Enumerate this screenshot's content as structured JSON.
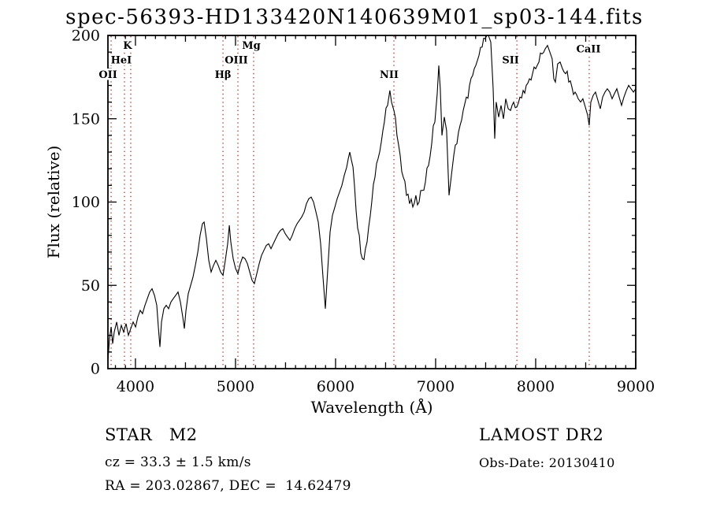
{
  "title": "spec-56393-HD133420N140639M01_sp03-144.fits",
  "annotations": {
    "class_label": "STAR   M2",
    "cz": "cz = 33.3 ± 1.5 km/s",
    "radec": "RA = 203.02867, DEC =  14.62479",
    "survey": "LAMOST DR2",
    "obs_date": "Obs-Date: 20130410"
  },
  "colors": {
    "background": "#ffffff",
    "axis": "#000000",
    "spectrum": "#000000",
    "marker_line": "#a83c32",
    "text": "#000000"
  },
  "chart_data": {
    "type": "line",
    "title": "spec-56393-HD133420N140639M01_sp03-144.fits",
    "xlabel": "Wavelength (Å)",
    "ylabel": "Flux (relative)",
    "xlim": [
      3725,
      9000
    ],
    "ylim": [
      0,
      200
    ],
    "x_major_ticks": [
      4000,
      5000,
      6000,
      7000,
      8000,
      9000
    ],
    "x_minor_step": 100,
    "x_mid_step": 500,
    "y_major_ticks": [
      0,
      50,
      100,
      150,
      200
    ],
    "y_minor_step": 10,
    "grid": false,
    "line_markers": [
      {
        "label": "OII",
        "wavelength": 3757,
        "label_dx": -4,
        "tier": 2
      },
      {
        "label": "HeI",
        "wavelength": 3890,
        "label_dx": -4,
        "tier": 1
      },
      {
        "label": "K",
        "wavelength": 3953,
        "label_dx": -4,
        "tier": 0
      },
      {
        "label": "Hβ",
        "wavelength": 4875,
        "label_dx": 0,
        "tier": 2
      },
      {
        "label": "OIII",
        "wavelength": 5024,
        "label_dx": -2,
        "tier": 1
      },
      {
        "label": "Mg",
        "wavelength": 5181,
        "label_dx": -3,
        "tier": 0
      },
      {
        "label": "NII",
        "wavelength": 6583,
        "label_dx": -6,
        "tier": 2
      },
      {
        "label": "SII",
        "wavelength": 7812,
        "label_dx": -8,
        "tier": 1
      },
      {
        "label": "CaII",
        "wavelength": 8535,
        "label_dx": -1,
        "tier": 0.25
      }
    ],
    "series": [
      {
        "name": "spectrum",
        "points": [
          [
            3725,
            5
          ],
          [
            3741,
            18
          ],
          [
            3757,
            25
          ],
          [
            3772,
            15
          ],
          [
            3788,
            22
          ],
          [
            3812,
            28
          ],
          [
            3835,
            20
          ],
          [
            3859,
            26
          ],
          [
            3882,
            22
          ],
          [
            3906,
            27
          ],
          [
            3930,
            20
          ],
          [
            3953,
            24
          ],
          [
            3977,
            28
          ],
          [
            4001,
            25
          ],
          [
            4024,
            31
          ],
          [
            4048,
            35
          ],
          [
            4071,
            33
          ],
          [
            4095,
            38
          ],
          [
            4119,
            42
          ],
          [
            4142,
            46
          ],
          [
            4166,
            48
          ],
          [
            4190,
            44
          ],
          [
            4213,
            38
          ],
          [
            4229,
            25
          ],
          [
            4245,
            13
          ],
          [
            4260,
            28
          ],
          [
            4284,
            36
          ],
          [
            4308,
            38
          ],
          [
            4331,
            36
          ],
          [
            4355,
            40
          ],
          [
            4378,
            42
          ],
          [
            4402,
            44
          ],
          [
            4426,
            46
          ],
          [
            4449,
            40
          ],
          [
            4473,
            31
          ],
          [
            4489,
            24
          ],
          [
            4505,
            35
          ],
          [
            4528,
            45
          ],
          [
            4552,
            50
          ],
          [
            4575,
            55
          ],
          [
            4599,
            62
          ],
          [
            4623,
            70
          ],
          [
            4646,
            80
          ],
          [
            4670,
            87
          ],
          [
            4686,
            88
          ],
          [
            4709,
            78
          ],
          [
            4733,
            65
          ],
          [
            4756,
            58
          ],
          [
            4780,
            62
          ],
          [
            4804,
            65
          ],
          [
            4827,
            62
          ],
          [
            4851,
            58
          ],
          [
            4875,
            56
          ],
          [
            4898,
            65
          ],
          [
            4922,
            75
          ],
          [
            4938,
            86
          ],
          [
            4953,
            76
          ],
          [
            4977,
            66
          ],
          [
            5001,
            60
          ],
          [
            5024,
            57
          ],
          [
            5048,
            63
          ],
          [
            5071,
            67
          ],
          [
            5095,
            66
          ],
          [
            5119,
            63
          ],
          [
            5142,
            58
          ],
          [
            5166,
            53
          ],
          [
            5189,
            51
          ],
          [
            5213,
            57
          ],
          [
            5237,
            63
          ],
          [
            5260,
            68
          ],
          [
            5284,
            71
          ],
          [
            5308,
            74
          ],
          [
            5331,
            75
          ],
          [
            5355,
            72
          ],
          [
            5378,
            75
          ],
          [
            5402,
            78
          ],
          [
            5426,
            81
          ],
          [
            5449,
            83
          ],
          [
            5473,
            84
          ],
          [
            5497,
            81
          ],
          [
            5520,
            79
          ],
          [
            5544,
            77
          ],
          [
            5567,
            80
          ],
          [
            5591,
            84
          ],
          [
            5615,
            87
          ],
          [
            5638,
            89
          ],
          [
            5662,
            91
          ],
          [
            5686,
            94
          ],
          [
            5709,
            99
          ],
          [
            5733,
            102
          ],
          [
            5756,
            103
          ],
          [
            5780,
            100
          ],
          [
            5804,
            94
          ],
          [
            5827,
            88
          ],
          [
            5851,
            75
          ],
          [
            5874,
            55
          ],
          [
            5898,
            36
          ],
          [
            5922,
            60
          ],
          [
            5945,
            82
          ],
          [
            5969,
            92
          ],
          [
            5993,
            97
          ],
          [
            6016,
            102
          ],
          [
            6040,
            106
          ],
          [
            6063,
            110
          ],
          [
            6087,
            116
          ],
          [
            6111,
            121
          ],
          [
            6142,
            130
          ],
          [
            6174,
            121
          ],
          [
            6205,
            95
          ],
          [
            6237,
            80
          ],
          [
            6268,
            66
          ],
          [
            6299,
            72
          ],
          [
            6331,
            85
          ],
          [
            6362,
            100
          ],
          [
            6394,
            115
          ],
          [
            6425,
            126
          ],
          [
            6457,
            136
          ],
          [
            6488,
            148
          ],
          [
            6520,
            158
          ],
          [
            6543,
            167
          ],
          [
            6559,
            160
          ],
          [
            6583,
            155
          ],
          [
            6614,
            140
          ],
          [
            6646,
            128
          ],
          [
            6677,
            115
          ],
          [
            6709,
            104
          ],
          [
            6740,
            99
          ],
          [
            6772,
            97
          ],
          [
            6803,
            104
          ],
          [
            6835,
            100
          ],
          [
            6866,
            107
          ],
          [
            6898,
            112
          ],
          [
            6929,
            122
          ],
          [
            6961,
            135
          ],
          [
            6992,
            148
          ],
          [
            7016,
            165
          ],
          [
            7032,
            182
          ],
          [
            7047,
            168
          ],
          [
            7063,
            140
          ],
          [
            7087,
            151
          ],
          [
            7110,
            143
          ],
          [
            7134,
            104
          ],
          [
            7158,
            116
          ],
          [
            7181,
            128
          ],
          [
            7213,
            135
          ],
          [
            7244,
            146
          ],
          [
            7276,
            155
          ],
          [
            7307,
            163
          ],
          [
            7339,
            170
          ],
          [
            7370,
            176
          ],
          [
            7402,
            182
          ],
          [
            7433,
            188
          ],
          [
            7465,
            193
          ],
          [
            7496,
            198
          ],
          [
            7528,
            200
          ],
          [
            7551,
            196
          ],
          [
            7575,
            168
          ],
          [
            7591,
            138
          ],
          [
            7606,
            160
          ],
          [
            7630,
            151
          ],
          [
            7654,
            158
          ],
          [
            7678,
            150
          ],
          [
            7701,
            162
          ],
          [
            7725,
            156
          ],
          [
            7749,
            155
          ],
          [
            7780,
            160
          ],
          [
            7812,
            157
          ],
          [
            7843,
            163
          ],
          [
            7875,
            167
          ],
          [
            7906,
            170
          ],
          [
            7938,
            174
          ],
          [
            7969,
            177
          ],
          [
            8000,
            180
          ],
          [
            8032,
            184
          ],
          [
            8063,
            189
          ],
          [
            8095,
            192
          ],
          [
            8118,
            194
          ],
          [
            8142,
            190
          ],
          [
            8165,
            186
          ],
          [
            8181,
            174
          ],
          [
            8197,
            172
          ],
          [
            8220,
            183
          ],
          [
            8244,
            184
          ],
          [
            8268,
            180
          ],
          [
            8299,
            177
          ],
          [
            8331,
            172
          ],
          [
            8362,
            169
          ],
          [
            8394,
            166
          ],
          [
            8425,
            162
          ],
          [
            8449,
            160
          ],
          [
            8472,
            162
          ],
          [
            8496,
            157
          ],
          [
            8520,
            152
          ],
          [
            8535,
            146
          ],
          [
            8551,
            160
          ],
          [
            8575,
            164
          ],
          [
            8598,
            166
          ],
          [
            8622,
            161
          ],
          [
            8646,
            156
          ],
          [
            8669,
            163
          ],
          [
            8693,
            166
          ],
          [
            8716,
            168
          ],
          [
            8740,
            166
          ],
          [
            8764,
            162
          ],
          [
            8787,
            165
          ],
          [
            8811,
            168
          ],
          [
            8835,
            163
          ],
          [
            8858,
            158
          ],
          [
            8882,
            163
          ],
          [
            8906,
            167
          ],
          [
            8929,
            170
          ],
          [
            8953,
            168
          ],
          [
            8977,
            166
          ],
          [
            9000,
            168
          ]
        ]
      }
    ]
  }
}
